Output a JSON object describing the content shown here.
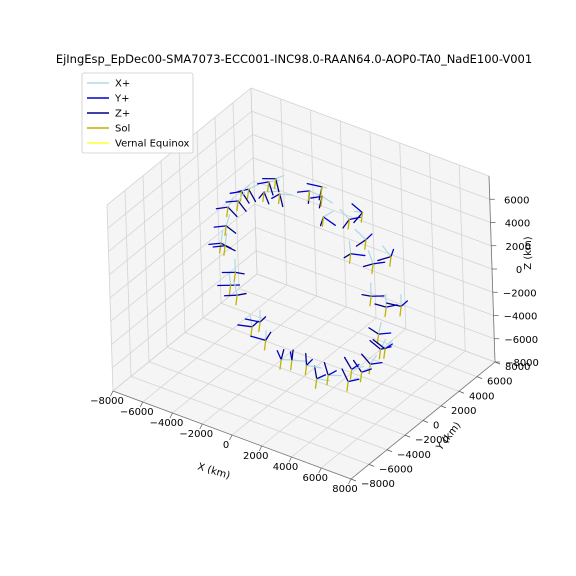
{
  "chart_data": {
    "type": "3d-vector-plot",
    "title": "EjIngEsp_EpDec00-SMA7073-ECC001-INC98.0-RAAN64.0-AOP0-TA0_NadE100-V001",
    "xlabel": "X (km)",
    "ylabel": "Y (km)",
    "zlabel": "Z (km)",
    "xlim": [
      -8000,
      8000
    ],
    "ylim": [
      -8000,
      8000
    ],
    "zlim": [
      -8000,
      8000
    ],
    "x_ticks": [
      "−8000",
      "−6000",
      "−4000",
      "−2000",
      "0",
      "2000",
      "4000",
      "6000",
      "8000"
    ],
    "y_ticks": [
      "−8000",
      "−6000",
      "−4000",
      "−2000",
      "0",
      "2000",
      "4000",
      "6000",
      "8000"
    ],
    "z_ticks": [
      "−8000",
      "−6000",
      "−4000",
      "−2000",
      "0",
      "2000",
      "4000",
      "6000"
    ],
    "grid": true,
    "legend_position": "upper-left",
    "legend": [
      {
        "name": "X+",
        "color": "#add8e6"
      },
      {
        "name": "Y+",
        "color": "#0000cd"
      },
      {
        "name": "Z+",
        "color": "#00008b"
      },
      {
        "name": "Sol",
        "color": "#bdb400"
      },
      {
        "name": "Vernal Equinox",
        "color": "#ffff33"
      }
    ],
    "orbit": {
      "semi_major_axis_km": 7073,
      "inclination_deg": 98.0,
      "raan_deg": 64.0,
      "positions_km": [
        [
          -2500,
          300,
          6500
        ],
        [
          1800,
          -200,
          6700
        ],
        [
          4200,
          -1200,
          5300
        ],
        [
          6000,
          -2000,
          3000
        ],
        [
          6800,
          -2600,
          500
        ],
        [
          6300,
          -2800,
          -2200
        ],
        [
          4500,
          -2400,
          -4800
        ],
        [
          1800,
          -1500,
          -6400
        ],
        [
          -1200,
          -500,
          -6800
        ],
        [
          -3800,
          600,
          -5900
        ],
        [
          -5800,
          1600,
          -3900
        ],
        [
          -6800,
          2300,
          -1200
        ],
        [
          -6500,
          2700,
          1800
        ],
        [
          -4800,
          2300,
          4400
        ],
        [
          -2000,
          1200,
          6000
        ],
        [
          -600,
          2200,
          6300
        ],
        [
          2800,
          1000,
          6200
        ],
        [
          5200,
          -400,
          4400
        ],
        [
          6500,
          -1200,
          1800
        ],
        [
          6400,
          -1800,
          -1500
        ],
        [
          5000,
          -1700,
          -4200
        ],
        [
          2400,
          -1200,
          -6000
        ],
        [
          -600,
          -300,
          -6700
        ],
        [
          -3500,
          1000,
          -5600
        ],
        [
          -5700,
          2000,
          -3000
        ],
        [
          -6600,
          2600,
          200
        ],
        [
          -5600,
          2800,
          3500
        ],
        [
          -3600,
          2600,
          5400
        ],
        [
          500,
          1800,
          6600
        ],
        [
          3700,
          1300,
          4700
        ],
        [
          -1000,
          4200,
          5200
        ],
        [
          2200,
          3400,
          5000
        ],
        [
          4800,
          2200,
          3200
        ],
        [
          6200,
          900,
          400
        ],
        [
          5700,
          -200,
          -2800
        ],
        [
          3700,
          -700,
          -5200
        ],
        [
          700,
          -800,
          -6200
        ],
        [
          -2400,
          -200,
          -5900
        ],
        [
          -5000,
          1000,
          -4000
        ],
        [
          -6400,
          2100,
          -1100
        ],
        [
          -6100,
          3200,
          2200
        ],
        [
          -4000,
          4000,
          4600
        ]
      ]
    }
  }
}
